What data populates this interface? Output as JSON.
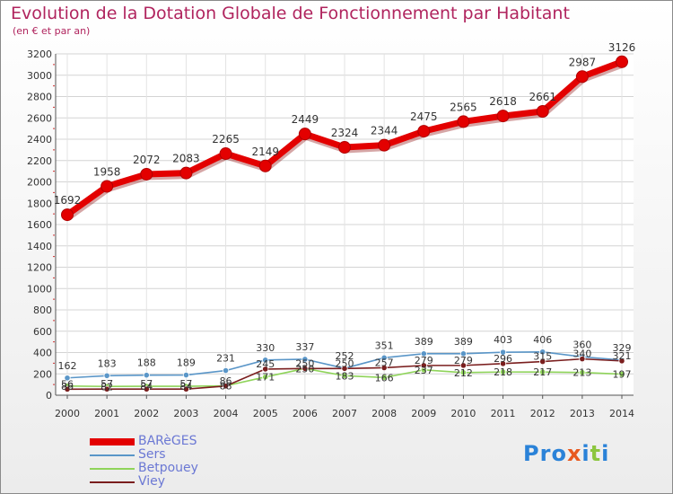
{
  "header": {
    "title": "Evolution de la Dotation Globale de Fonctionnement par Habitant",
    "subtitle": "(en € et par an)"
  },
  "brand": {
    "text": "Proxiti",
    "colors": [
      "#2a82d8",
      "#2a82d8",
      "#2a82d8",
      "#e8591f",
      "#2a82d8",
      "#8cc63f",
      "#2a82d8"
    ]
  },
  "chart_data": {
    "type": "line",
    "title": "Evolution de la Dotation Globale de Fonctionnement par Habitant",
    "subtitle": "(en € et par an)",
    "xlabel": "",
    "ylabel": "",
    "ylim": [
      0,
      3200
    ],
    "yticks": [
      0,
      200,
      400,
      600,
      800,
      1000,
      1200,
      1400,
      1600,
      1800,
      2000,
      2200,
      2400,
      2600,
      2800,
      3000,
      3200
    ],
    "grid": true,
    "legend_position": "bottom-left",
    "x": [
      "2000",
      "2001",
      "2002",
      "2003",
      "2004",
      "2005",
      "2006",
      "2007",
      "2008",
      "2009",
      "2010",
      "2011",
      "2012",
      "2013",
      "2014"
    ],
    "series": [
      {
        "name": "BARèGES",
        "color": "#e30000",
        "values": [
          1692,
          1958,
          2072,
          2083,
          2265,
          2149,
          2449,
          2324,
          2344,
          2475,
          2565,
          2618,
          2661,
          2987,
          3126
        ]
      },
      {
        "name": "Sers",
        "color": "#5a96c8",
        "values": [
          162,
          183,
          188,
          189,
          231,
          330,
          337,
          252,
          351,
          389,
          389,
          403,
          406,
          360,
          329
        ]
      },
      {
        "name": "Betpouey",
        "color": "#8fd45a",
        "values": [
          86,
          82,
          84,
          84,
          88,
          171,
          250,
          183,
          166,
          237,
          212,
          218,
          217,
          213,
          197
        ]
      },
      {
        "name": "Viey",
        "color": "#7a1e1e",
        "values": [
          56,
          57,
          57,
          57,
          86,
          245,
          250,
          250,
          257,
          279,
          279,
          296,
          315,
          340,
          321
        ]
      }
    ]
  }
}
